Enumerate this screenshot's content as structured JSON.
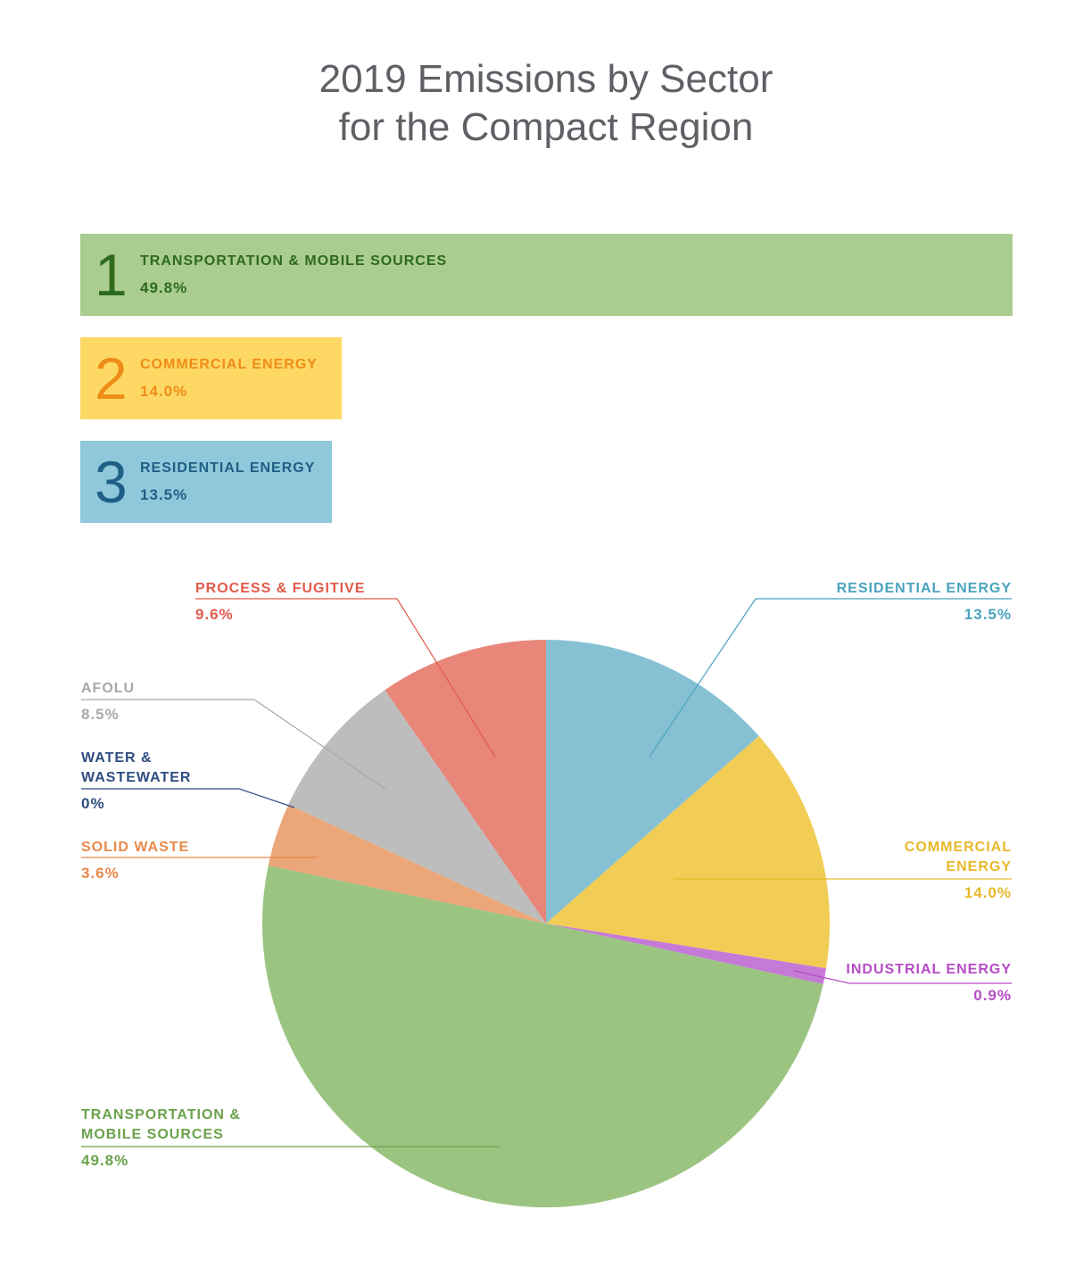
{
  "title": {
    "line1": "2019 Emissions by Sector",
    "line2": "for the Compact Region"
  },
  "top_sectors": [
    {
      "rank": "1",
      "name": "TRANSPORTATION & MOBILE SOURCES",
      "value": "49.8%",
      "color": "#a9cd91",
      "text_color": "#2e6a1e"
    },
    {
      "rank": "2",
      "name": "COMMERCIAL ENERGY",
      "value": "14.0%",
      "color": "#fdd864",
      "text_color": "#f08c18"
    },
    {
      "rank": "3",
      "name": "RESIDENTIAL ENERGY",
      "value": "13.5%",
      "color": "#8fc8da",
      "text_color": "#1f5f86"
    }
  ],
  "chart_data": {
    "type": "pie",
    "start": "12 o'clock, clockwise",
    "slices": [
      {
        "label": [
          "RESIDENTIAL ENERGY"
        ],
        "value": 13.5,
        "value_label": "13.5%",
        "color": "#86c0d3",
        "text_color": "#4aa3bd"
      },
      {
        "label": [
          "COMMERCIAL",
          "ENERGY"
        ],
        "value": 14.0,
        "value_label": "14.0%",
        "color": "#f1cd55",
        "text_color": "#e8b82a"
      },
      {
        "label": [
          "INDUSTRIAL ENERGY"
        ],
        "value": 0.9,
        "value_label": "0.9%",
        "color": "#c57ad8",
        "text_color": "#b54cc4"
      },
      {
        "label": [
          "TRANSPORTATION &",
          "MOBILE SOURCES"
        ],
        "value": 49.8,
        "value_label": "49.8%",
        "color": "#9bc481",
        "text_color": "#6aa24b"
      },
      {
        "label": [
          "SOLID WASTE"
        ],
        "value": 3.6,
        "value_label": "3.6%",
        "color": "#eba679",
        "text_color": "#e8894a"
      },
      {
        "label": [
          "WATER &",
          "WASTEWATER"
        ],
        "value": 0,
        "value_label": "0%",
        "color": "#2f4d80",
        "text_color": "#2f4d80"
      },
      {
        "label": [
          "AFOLU"
        ],
        "value": 8.5,
        "value_label": "8.5%",
        "color": "#bdbdbd",
        "text_color": "#a8a8a8"
      },
      {
        "label": [
          "PROCESS & FUGITIVE"
        ],
        "value": 9.6,
        "value_label": "9.6%",
        "color": "#e8867a",
        "text_color": "#e05a49"
      }
    ]
  }
}
